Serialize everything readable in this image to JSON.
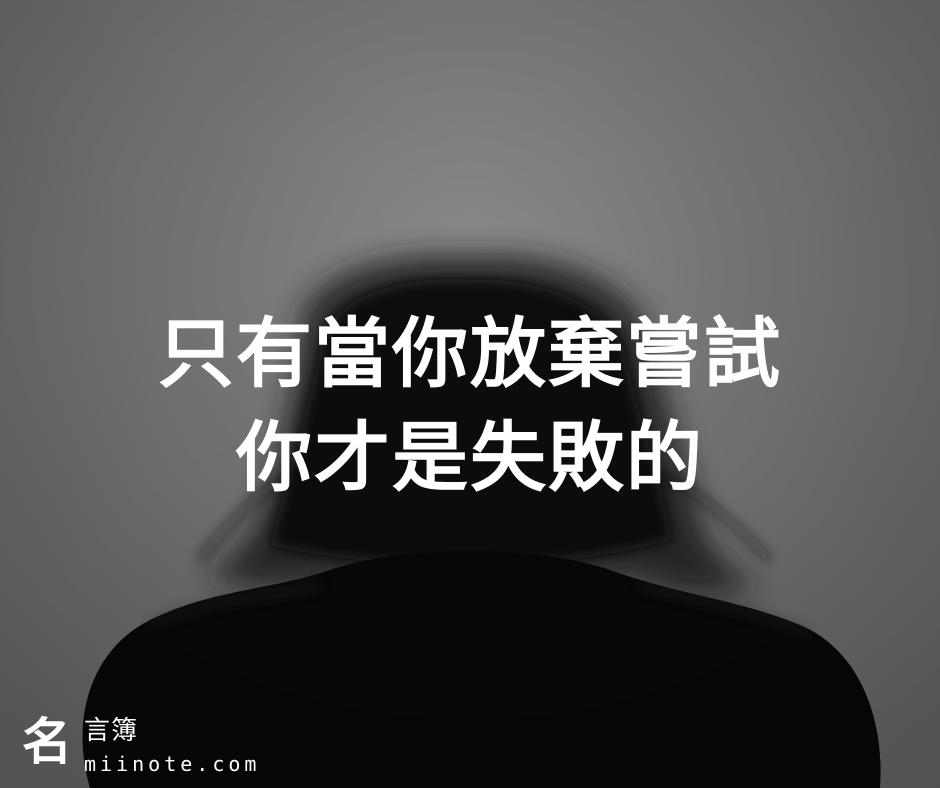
{
  "quote": {
    "line1": "只有當你放棄嘗試",
    "line2": "你才是失敗的"
  },
  "logo": {
    "mark": "名",
    "title": "言簿",
    "url": "miinote.com"
  },
  "colors": {
    "background": "#808080",
    "text": "#ffffff",
    "silhouette": "#0a0a0a"
  }
}
